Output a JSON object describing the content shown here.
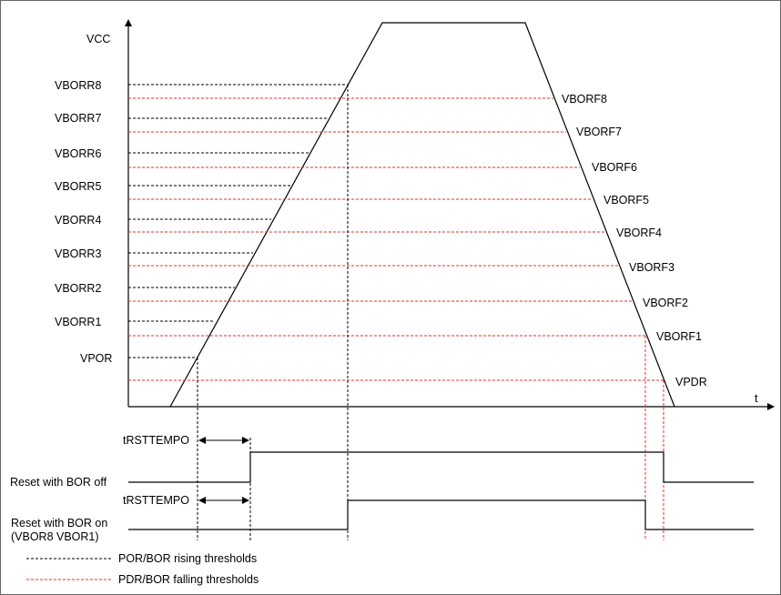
{
  "colors": {
    "line": "#000000",
    "rising": "#000000",
    "falling": "#e8312a",
    "frame": "#666666"
  },
  "axes": {
    "y_label": "VCC",
    "x_label": "t"
  },
  "rising_thresholds": [
    "VBORR8",
    "VBORR7",
    "VBORR6",
    "VBORR5",
    "VBORR4",
    "VBORR3",
    "VBORR2",
    "VBORR1",
    "VPOR"
  ],
  "falling_thresholds": [
    "VBORF8",
    "VBORF7",
    "VBORF6",
    "VBORF5",
    "VBORF4",
    "VBORF3",
    "VBORF2",
    "VBORF1",
    "VPDR"
  ],
  "timing": {
    "delay_label_1": "tRSTTEMPO",
    "delay_label_2": "tRSTTEMPO",
    "signal_bor_off": "Reset with BOR off",
    "signal_bor_on_line1": "Reset with BOR on",
    "signal_bor_on_line2": "(VBOR8 VBOR1)"
  },
  "legend": {
    "rising": "POR/BOR rising thresholds",
    "falling": "PDR/BOR falling thresholds"
  }
}
